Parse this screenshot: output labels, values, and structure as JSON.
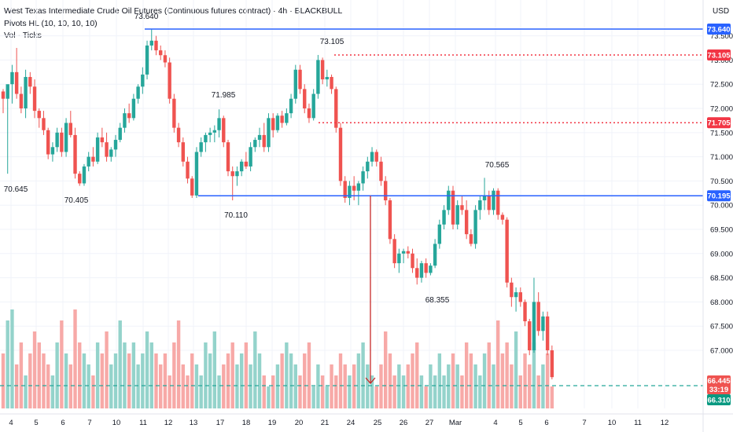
{
  "header": {
    "title": "West Texas Intermediate Crude Oil Futures (Continuous futures contract) · 4h · BLACKBULL",
    "indicator1": "Pivots HL (10, 10, 10, 10)",
    "indicator2": "Vol · Ticks"
  },
  "price_axis": {
    "currency": "USD",
    "ticks": [
      "73.500",
      "73.000",
      "72.500",
      "72.000",
      "71.500",
      "71.000",
      "70.500",
      "70.000",
      "69.500",
      "69.000",
      "68.500",
      "68.000",
      "67.500",
      "67.000"
    ]
  },
  "time_axis": {
    "labels": [
      "4",
      "5",
      "6",
      "7",
      "10",
      "11",
      "12",
      "13",
      "17",
      "18",
      "19",
      "20",
      "21",
      "24",
      "25",
      "26",
      "27",
      "Mar",
      "4",
      "5",
      "6",
      "7",
      "10",
      "11",
      "12"
    ]
  },
  "price_tags": {
    "high_level": "73.640",
    "dotted_high": "73.105",
    "dotted_mid": "71.705",
    "support": "70.195",
    "last_price": "66.445",
    "countdown": "33:19",
    "mark_price": "66.310"
  },
  "pivot_labels": [
    "73.640",
    "73.105",
    "71.985",
    "70.645",
    "70.405",
    "70.110",
    "70.565",
    "68.355"
  ],
  "colors": {
    "up": "#26a69a",
    "down": "#ef5350",
    "vol_up": "#94d3cb",
    "vol_down": "#f7a9a7",
    "level_line": "#2962ff",
    "dotted_line": "#f23645",
    "arrow": "#c62828"
  },
  "chart_data": {
    "type": "candlestick",
    "title": "West Texas Intermediate Crude Oil Futures (Continuous futures contract) · 4h · BLACKBULL",
    "ylabel": "USD",
    "ylim": [
      66.1,
      73.9
    ],
    "candles": [
      [
        72.35,
        72.4,
        71.9,
        72.2
      ],
      [
        72.2,
        72.45,
        70.65,
        72.5
      ],
      [
        72.5,
        72.9,
        72.1,
        72.75
      ],
      [
        72.75,
        73.25,
        72.2,
        72.3
      ],
      [
        72.3,
        72.45,
        71.9,
        72.0
      ],
      [
        72.0,
        72.8,
        71.8,
        72.65
      ],
      [
        72.65,
        72.75,
        72.3,
        72.45
      ],
      [
        72.45,
        72.6,
        71.8,
        71.95
      ],
      [
        71.95,
        72.0,
        71.6,
        71.8
      ],
      [
        71.8,
        71.95,
        71.45,
        71.55
      ],
      [
        71.55,
        71.6,
        70.95,
        71.05
      ],
      [
        71.05,
        71.3,
        70.9,
        71.2
      ],
      [
        71.2,
        71.6,
        71.1,
        71.5
      ],
      [
        71.5,
        71.6,
        71.0,
        71.1
      ],
      [
        71.1,
        71.8,
        71.0,
        71.7
      ],
      [
        71.7,
        71.95,
        71.4,
        71.45
      ],
      [
        71.45,
        71.6,
        70.55,
        70.65
      ],
      [
        70.65,
        70.7,
        70.4,
        70.45
      ],
      [
        70.45,
        70.85,
        70.4,
        70.8
      ],
      [
        70.8,
        71.1,
        70.7,
        71.0
      ],
      [
        71.0,
        71.2,
        70.8,
        70.9
      ],
      [
        70.9,
        71.5,
        70.85,
        71.4
      ],
      [
        71.4,
        71.6,
        71.2,
        71.3
      ],
      [
        71.3,
        71.5,
        70.9,
        71.0
      ],
      [
        71.0,
        71.2,
        70.9,
        71.15
      ],
      [
        71.15,
        71.45,
        71.0,
        71.35
      ],
      [
        71.35,
        71.7,
        71.3,
        71.6
      ],
      [
        71.6,
        72.0,
        71.5,
        71.9
      ],
      [
        71.9,
        72.1,
        71.7,
        71.8
      ],
      [
        71.8,
        72.3,
        71.75,
        72.2
      ],
      [
        72.2,
        72.5,
        72.1,
        72.45
      ],
      [
        72.45,
        72.85,
        72.3,
        72.7
      ],
      [
        72.7,
        73.4,
        72.6,
        73.3
      ],
      [
        73.3,
        73.64,
        73.2,
        73.4
      ],
      [
        73.4,
        73.5,
        73.1,
        73.2
      ],
      [
        73.2,
        73.3,
        73.0,
        73.1
      ],
      [
        73.1,
        73.2,
        72.85,
        72.95
      ],
      [
        72.95,
        73.05,
        72.1,
        72.2
      ],
      [
        72.2,
        72.3,
        71.5,
        71.6
      ],
      [
        71.6,
        71.7,
        71.2,
        71.3
      ],
      [
        71.3,
        71.4,
        70.8,
        70.9
      ],
      [
        70.9,
        71.0,
        70.45,
        70.55
      ],
      [
        70.55,
        70.6,
        70.15,
        70.2
      ],
      [
        70.2,
        71.2,
        70.15,
        71.1
      ],
      [
        71.1,
        71.4,
        71.0,
        71.3
      ],
      [
        71.3,
        71.5,
        71.1,
        71.45
      ],
      [
        71.45,
        71.6,
        71.3,
        71.5
      ],
      [
        71.5,
        71.65,
        71.3,
        71.55
      ],
      [
        71.55,
        71.98,
        71.4,
        71.8
      ],
      [
        71.8,
        71.85,
        71.2,
        71.3
      ],
      [
        71.3,
        71.35,
        70.6,
        70.7
      ],
      [
        70.7,
        70.8,
        70.1,
        70.6
      ],
      [
        70.6,
        70.8,
        70.4,
        70.7
      ],
      [
        70.7,
        70.95,
        70.6,
        70.9
      ],
      [
        70.9,
        71.1,
        70.75,
        70.8
      ],
      [
        70.8,
        71.3,
        70.7,
        71.2
      ],
      [
        71.2,
        71.4,
        71.1,
        71.35
      ],
      [
        71.35,
        71.6,
        71.2,
        71.45
      ],
      [
        71.45,
        71.7,
        71.1,
        71.2
      ],
      [
        71.2,
        71.9,
        71.1,
        71.8
      ],
      [
        71.8,
        71.9,
        71.4,
        71.55
      ],
      [
        71.55,
        71.9,
        71.5,
        71.85
      ],
      [
        71.85,
        71.95,
        71.6,
        71.7
      ],
      [
        71.7,
        72.0,
        71.65,
        71.9
      ],
      [
        71.9,
        72.3,
        71.8,
        72.2
      ],
      [
        72.2,
        72.9,
        72.1,
        72.8
      ],
      [
        72.8,
        72.9,
        72.3,
        72.4
      ],
      [
        72.4,
        72.5,
        71.9,
        72.0
      ],
      [
        72.0,
        72.1,
        71.7,
        71.8
      ],
      [
        71.8,
        72.4,
        71.75,
        72.3
      ],
      [
        72.3,
        73.105,
        72.2,
        73.0
      ],
      [
        73.0,
        73.05,
        72.5,
        72.6
      ],
      [
        72.6,
        72.8,
        72.45,
        72.65
      ],
      [
        72.65,
        72.7,
        72.3,
        72.4
      ],
      [
        72.4,
        72.45,
        71.5,
        71.6
      ],
      [
        71.6,
        71.7,
        70.4,
        70.5
      ],
      [
        70.5,
        70.6,
        70.05,
        70.15
      ],
      [
        70.15,
        70.5,
        70.0,
        70.4
      ],
      [
        70.4,
        70.6,
        70.1,
        70.3
      ],
      [
        70.3,
        70.5,
        70.0,
        70.45
      ],
      [
        70.45,
        70.8,
        70.3,
        70.7
      ],
      [
        70.7,
        71.0,
        70.55,
        70.9
      ],
      [
        70.9,
        71.2,
        70.8,
        71.1
      ],
      [
        71.1,
        71.15,
        70.8,
        70.9
      ],
      [
        70.9,
        71.0,
        70.4,
        70.5
      ],
      [
        70.5,
        70.6,
        70.0,
        70.1
      ],
      [
        70.1,
        70.15,
        69.2,
        69.3
      ],
      [
        69.3,
        69.4,
        68.7,
        68.8
      ],
      [
        68.8,
        69.1,
        68.6,
        69.0
      ],
      [
        69.0,
        69.1,
        68.8,
        69.05
      ],
      [
        69.05,
        69.15,
        68.9,
        69.0
      ],
      [
        69.0,
        69.1,
        68.6,
        68.7
      ],
      [
        68.7,
        68.9,
        68.36,
        68.5
      ],
      [
        68.5,
        68.85,
        68.4,
        68.8
      ],
      [
        68.8,
        68.9,
        68.5,
        68.6
      ],
      [
        68.6,
        68.8,
        68.55,
        68.75
      ],
      [
        68.75,
        69.3,
        68.7,
        69.2
      ],
      [
        69.2,
        69.7,
        69.1,
        69.6
      ],
      [
        69.6,
        70.0,
        69.5,
        69.9
      ],
      [
        69.9,
        70.4,
        69.8,
        70.3
      ],
      [
        70.3,
        70.4,
        69.5,
        69.6
      ],
      [
        69.6,
        70.1,
        69.5,
        70.0
      ],
      [
        70.0,
        70.2,
        69.8,
        69.9
      ],
      [
        69.9,
        70.1,
        69.3,
        69.4
      ],
      [
        69.4,
        69.5,
        69.15,
        69.2
      ],
      [
        69.2,
        70.0,
        69.1,
        69.9
      ],
      [
        69.9,
        70.2,
        69.7,
        70.1
      ],
      [
        70.1,
        70.565,
        69.9,
        70.2
      ],
      [
        70.2,
        70.3,
        69.8,
        69.9
      ],
      [
        69.9,
        70.35,
        69.8,
        70.3
      ],
      [
        70.3,
        70.35,
        69.7,
        69.8
      ],
      [
        69.8,
        69.85,
        69.6,
        69.7
      ],
      [
        69.7,
        69.75,
        68.3,
        68.4
      ],
      [
        68.4,
        68.5,
        67.9,
        68.1
      ],
      [
        68.1,
        68.3,
        67.8,
        68.2
      ],
      [
        68.2,
        68.3,
        67.9,
        68.0
      ],
      [
        68.0,
        68.05,
        67.5,
        67.6
      ],
      [
        67.6,
        67.65,
        66.9,
        67.0
      ],
      [
        67.0,
        68.5,
        66.95,
        68.0
      ],
      [
        68.0,
        68.2,
        67.3,
        67.4
      ],
      [
        67.4,
        67.8,
        67.2,
        67.7
      ],
      [
        67.7,
        67.8,
        66.9,
        67.0
      ],
      [
        67.0,
        67.1,
        66.4,
        66.445
      ]
    ],
    "volume": [
      5,
      8,
      9,
      4,
      6,
      3,
      5,
      7,
      6,
      5,
      4,
      3,
      6,
      8,
      5,
      4,
      9,
      6,
      5,
      4,
      3,
      6,
      5,
      7,
      4,
      5,
      8,
      6,
      5,
      6,
      4,
      5,
      7,
      6,
      5,
      4,
      5,
      3,
      6,
      8,
      4,
      3,
      5,
      4,
      3,
      6,
      5,
      7,
      3,
      4,
      5,
      6,
      4,
      5,
      6,
      4,
      7,
      5,
      3,
      2,
      3,
      4,
      5,
      6,
      5,
      4,
      3,
      5,
      6,
      2,
      4,
      3,
      2,
      4,
      3,
      5,
      4,
      3,
      4,
      5,
      6,
      4,
      3,
      2,
      4,
      7,
      5,
      3,
      4,
      3,
      4,
      5,
      6,
      3,
      2,
      4,
      3,
      5,
      3,
      4,
      5,
      4,
      3,
      6,
      5,
      4,
      3,
      5,
      6,
      4,
      8,
      5,
      6,
      4,
      7,
      3,
      5,
      4,
      6,
      3,
      4,
      5,
      2
    ],
    "price_levels": [
      73.64,
      73.105,
      71.705,
      70.195
    ]
  }
}
